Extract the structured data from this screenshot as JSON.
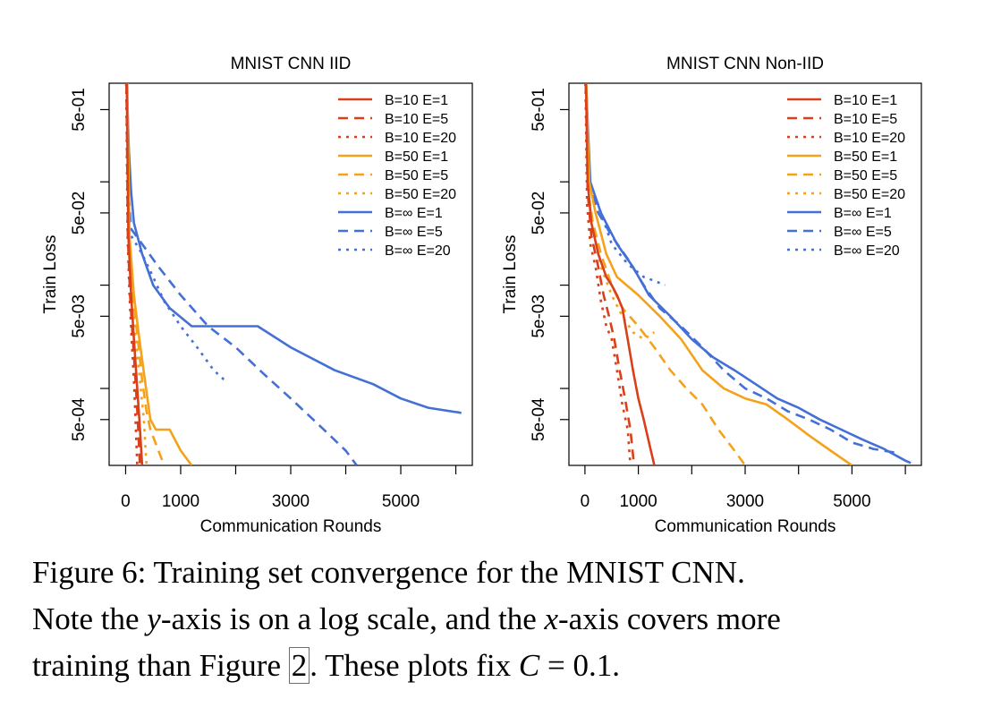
{
  "colors": {
    "B10": "#d9401a",
    "B50": "#f5a21b",
    "Binf": "#4470d6"
  },
  "chart_data": [
    {
      "type": "line",
      "title": "MNIST CNN IID",
      "xlabel": "Communication Rounds",
      "ylabel": "Train Loss",
      "ylog": true,
      "xlim": [
        -300,
        6300
      ],
      "ylim": [
        0.00018,
        0.9
      ],
      "xticks": [
        0,
        1000,
        3000,
        5000
      ],
      "xtick_labels": [
        "0",
        "1000",
        "3000",
        "5000"
      ],
      "yticks": [
        0.0005,
        0.005,
        0.05,
        0.5
      ],
      "ytick_labels": [
        "5e-04",
        "5e-03",
        "5e-02",
        "5e-01"
      ],
      "legend_position": "top-right",
      "series": [
        {
          "name": "B=10 E=1",
          "color": "#d9401a",
          "dash": "solid",
          "points": [
            [
              20,
              0.9
            ],
            [
              50,
              0.03
            ],
            [
              100,
              0.008
            ],
            [
              150,
              0.003
            ],
            [
              200,
              0.0012
            ],
            [
              250,
              0.0005
            ],
            [
              300,
              0.00018
            ]
          ]
        },
        {
          "name": "B=10 E=5",
          "color": "#d9401a",
          "dash": "dashed",
          "points": [
            [
              15,
              0.9
            ],
            [
              40,
              0.03
            ],
            [
              80,
              0.008
            ],
            [
              130,
              0.003
            ],
            [
              180,
              0.0012
            ],
            [
              220,
              0.0005
            ],
            [
              260,
              0.00018
            ]
          ]
        },
        {
          "name": "B=10 E=20",
          "color": "#d9401a",
          "dash": "dotted",
          "points": [
            [
              12,
              0.9
            ],
            [
              35,
              0.03
            ],
            [
              70,
              0.008
            ],
            [
              110,
              0.003
            ],
            [
              150,
              0.0012
            ],
            [
              180,
              0.0005
            ],
            [
              210,
              0.00018
            ]
          ]
        },
        {
          "name": "B=50 E=1",
          "color": "#f5a21b",
          "dash": "solid",
          "points": [
            [
              30,
              0.9
            ],
            [
              70,
              0.03
            ],
            [
              150,
              0.008
            ],
            [
              250,
              0.003
            ],
            [
              350,
              0.0012
            ],
            [
              450,
              0.0005
            ],
            [
              550,
              0.0004
            ],
            [
              800,
              0.0004
            ],
            [
              1000,
              0.00025
            ],
            [
              1200,
              0.00018
            ]
          ]
        },
        {
          "name": "B=50 E=5",
          "color": "#f5a21b",
          "dash": "dashed",
          "points": [
            [
              20,
              0.9
            ],
            [
              60,
              0.03
            ],
            [
              130,
              0.008
            ],
            [
              220,
              0.003
            ],
            [
              300,
              0.0012
            ],
            [
              380,
              0.0006
            ],
            [
              450,
              0.0004
            ],
            [
              700,
              0.00018
            ]
          ]
        },
        {
          "name": "B=50 E=20",
          "color": "#f5a21b",
          "dash": "dotted",
          "points": [
            [
              15,
              0.9
            ],
            [
              50,
              0.03
            ],
            [
              110,
              0.008
            ],
            [
              180,
              0.003
            ],
            [
              260,
              0.0012
            ],
            [
              330,
              0.0005
            ],
            [
              380,
              0.00018
            ]
          ]
        },
        {
          "name": "B=∞ E=1",
          "color": "#4470d6",
          "dash": "solid",
          "points": [
            [
              20,
              0.9
            ],
            [
              60,
              0.2
            ],
            [
              100,
              0.08
            ],
            [
              150,
              0.04
            ],
            [
              300,
              0.02
            ],
            [
              500,
              0.01
            ],
            [
              800,
              0.006
            ],
            [
              1200,
              0.004
            ],
            [
              2400,
              0.004
            ],
            [
              3000,
              0.0025
            ],
            [
              3800,
              0.0015
            ],
            [
              4500,
              0.0011
            ],
            [
              5000,
              0.0008
            ],
            [
              5500,
              0.00065
            ],
            [
              6100,
              0.00058
            ]
          ]
        },
        {
          "name": "B=∞ E=5",
          "color": "#4470d6",
          "dash": "dashed",
          "points": [
            [
              15,
              0.9
            ],
            [
              50,
              0.08
            ],
            [
              100,
              0.035
            ],
            [
              300,
              0.025
            ],
            [
              600,
              0.015
            ],
            [
              1000,
              0.008
            ],
            [
              1500,
              0.004
            ],
            [
              2000,
              0.0025
            ],
            [
              2500,
              0.0014
            ],
            [
              3000,
              0.0008
            ],
            [
              3500,
              0.00045
            ],
            [
              4000,
              0.00025
            ],
            [
              4200,
              0.00018
            ]
          ]
        },
        {
          "name": "B=∞ E=20",
          "color": "#4470d6",
          "dash": "dotted",
          "points": [
            [
              10,
              0.9
            ],
            [
              40,
              0.06
            ],
            [
              100,
              0.03
            ],
            [
              300,
              0.02
            ],
            [
              500,
              0.012
            ],
            [
              700,
              0.007
            ],
            [
              1000,
              0.004
            ],
            [
              1300,
              0.0025
            ],
            [
              1600,
              0.0015
            ],
            [
              1800,
              0.0012
            ]
          ]
        }
      ]
    },
    {
      "type": "line",
      "title": "MNIST CNN Non-IID",
      "xlabel": "Communication Rounds",
      "ylabel": "Train Loss",
      "ylog": true,
      "xlim": [
        -300,
        6300
      ],
      "ylim": [
        0.00018,
        0.9
      ],
      "xticks": [
        0,
        1000,
        3000,
        5000
      ],
      "xtick_labels": [
        "0",
        "1000",
        "3000",
        "5000"
      ],
      "yticks": [
        0.0005,
        0.005,
        0.05,
        0.5
      ],
      "ytick_labels": [
        "5e-04",
        "5e-03",
        "5e-02",
        "5e-01"
      ],
      "legend_position": "top-right",
      "series": [
        {
          "name": "B=10 E=1",
          "color": "#d9401a",
          "dash": "solid",
          "points": [
            [
              20,
              0.9
            ],
            [
              50,
              0.1
            ],
            [
              120,
              0.04
            ],
            [
              250,
              0.02
            ],
            [
              400,
              0.012
            ],
            [
              500,
              0.01
            ],
            [
              600,
              0.008
            ],
            [
              700,
              0.006
            ],
            [
              800,
              0.003
            ],
            [
              900,
              0.0015
            ],
            [
              1000,
              0.0008
            ],
            [
              1100,
              0.0005
            ],
            [
              1200,
              0.0003
            ],
            [
              1300,
              0.00018
            ]
          ]
        },
        {
          "name": "B=10 E=5",
          "color": "#d9401a",
          "dash": "dashed",
          "points": [
            [
              15,
              0.9
            ],
            [
              50,
              0.08
            ],
            [
              120,
              0.03
            ],
            [
              250,
              0.015
            ],
            [
              350,
              0.008
            ],
            [
              450,
              0.005
            ],
            [
              550,
              0.003
            ],
            [
              650,
              0.0015
            ],
            [
              750,
              0.0008
            ],
            [
              850,
              0.0004
            ],
            [
              920,
              0.00018
            ]
          ]
        },
        {
          "name": "B=10 E=20",
          "color": "#d9401a",
          "dash": "dotted",
          "points": [
            [
              10,
              0.9
            ],
            [
              40,
              0.06
            ],
            [
              100,
              0.025
            ],
            [
              200,
              0.015
            ],
            [
              300,
              0.007
            ],
            [
              400,
              0.004
            ],
            [
              500,
              0.003
            ],
            [
              600,
              0.0015
            ],
            [
              700,
              0.0007
            ],
            [
              800,
              0.0004
            ],
            [
              850,
              0.00018
            ]
          ]
        },
        {
          "name": "B=50 E=1",
          "color": "#f5a21b",
          "dash": "solid",
          "points": [
            [
              25,
              0.9
            ],
            [
              80,
              0.1
            ],
            [
              200,
              0.05
            ],
            [
              400,
              0.02
            ],
            [
              600,
              0.012
            ],
            [
              1000,
              0.008
            ],
            [
              1400,
              0.005
            ],
            [
              1800,
              0.003
            ],
            [
              2200,
              0.0015
            ],
            [
              2600,
              0.001
            ],
            [
              3000,
              0.0008
            ],
            [
              3400,
              0.0007
            ],
            [
              3800,
              0.0005
            ],
            [
              4200,
              0.00035
            ],
            [
              4600,
              0.00025
            ],
            [
              5000,
              0.00018
            ]
          ]
        },
        {
          "name": "B=50 E=5",
          "color": "#f5a21b",
          "dash": "dashed",
          "points": [
            [
              20,
              0.9
            ],
            [
              60,
              0.08
            ],
            [
              150,
              0.04
            ],
            [
              300,
              0.02
            ],
            [
              500,
              0.01
            ],
            [
              700,
              0.006
            ],
            [
              1000,
              0.004
            ],
            [
              1300,
              0.0025
            ],
            [
              1600,
              0.0015
            ],
            [
              1900,
              0.001
            ],
            [
              2200,
              0.0007
            ],
            [
              2500,
              0.0004
            ],
            [
              2800,
              0.00025
            ],
            [
              3000,
              0.00018
            ]
          ]
        },
        {
          "name": "B=50 E=20",
          "color": "#f5a21b",
          "dash": "dotted",
          "points": [
            [
              15,
              0.9
            ],
            [
              50,
              0.07
            ],
            [
              150,
              0.035
            ],
            [
              300,
              0.015
            ],
            [
              500,
              0.008
            ],
            [
              700,
              0.005
            ],
            [
              900,
              0.0035
            ],
            [
              1100,
              0.003
            ],
            [
              1300,
              0.0035
            ]
          ]
        },
        {
          "name": "B=∞ E=1",
          "color": "#4470d6",
          "dash": "solid",
          "points": [
            [
              20,
              0.9
            ],
            [
              100,
              0.1
            ],
            [
              300,
              0.05
            ],
            [
              600,
              0.025
            ],
            [
              900,
              0.015
            ],
            [
              1200,
              0.008
            ],
            [
              1600,
              0.005
            ],
            [
              2000,
              0.003
            ],
            [
              2400,
              0.002
            ],
            [
              2800,
              0.0015
            ],
            [
              3200,
              0.0011
            ],
            [
              3600,
              0.0008
            ],
            [
              4000,
              0.00065
            ],
            [
              4400,
              0.0005
            ],
            [
              4800,
              0.0004
            ],
            [
              5200,
              0.00032
            ],
            [
              5600,
              0.00026
            ],
            [
              6000,
              0.0002
            ],
            [
              6100,
              0.00019
            ]
          ]
        },
        {
          "name": "B=∞ E=5",
          "color": "#4470d6",
          "dash": "dashed",
          "points": [
            [
              15,
              0.9
            ],
            [
              80,
              0.1
            ],
            [
              250,
              0.05
            ],
            [
              500,
              0.03
            ],
            [
              800,
              0.018
            ],
            [
              1100,
              0.01
            ],
            [
              1400,
              0.006
            ],
            [
              1800,
              0.004
            ],
            [
              2200,
              0.0025
            ],
            [
              2600,
              0.0015
            ],
            [
              3000,
              0.001
            ],
            [
              3400,
              0.0008
            ],
            [
              3800,
              0.0006
            ],
            [
              4200,
              0.0005
            ],
            [
              4600,
              0.0004
            ],
            [
              5000,
              0.0003
            ],
            [
              5400,
              0.00026
            ],
            [
              5800,
              0.00024
            ]
          ]
        },
        {
          "name": "B=∞ E=20",
          "color": "#4470d6",
          "dash": "dotted",
          "points": [
            [
              10,
              0.9
            ],
            [
              80,
              0.1
            ],
            [
              250,
              0.06
            ],
            [
              500,
              0.025
            ],
            [
              800,
              0.016
            ],
            [
              1100,
              0.012
            ],
            [
              1300,
              0.011
            ],
            [
              1500,
              0.01
            ]
          ]
        }
      ]
    }
  ],
  "caption": {
    "line1": "Figure 6: Training set convergence for the MNIST CNN.",
    "line2_a": "Note the ",
    "line2_y": "y",
    "line2_b": "-axis is on a log scale, and the ",
    "line2_x": "x",
    "line2_c": "-axis covers more",
    "line3_a": "training than Figure ",
    "line3_ref": "2",
    "line3_b": ". These plots fix ",
    "line3_C": "C",
    "line3_c": " = 0.1."
  }
}
